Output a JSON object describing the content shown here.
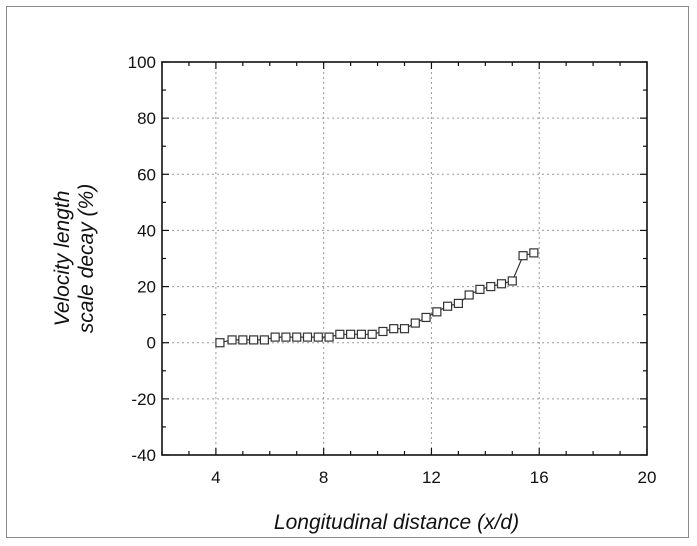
{
  "chart_data": {
    "type": "scatter",
    "xlabel": "Longitudinal distance (x/d)",
    "ylabel_lines": [
      "Velocity length",
      "scale decay (%)"
    ],
    "xlim": [
      2,
      20
    ],
    "ylim": [
      -40,
      100
    ],
    "xticks": [
      4,
      8,
      12,
      16,
      20
    ],
    "yticks": [
      100,
      80,
      60,
      40,
      20,
      0,
      -20,
      -40
    ],
    "grid": true,
    "marker": "open-square",
    "line": "connected",
    "colors": {
      "axis": "#111111",
      "grid": "#9a9a9a",
      "marker": "#333333"
    },
    "series": [
      {
        "x": [
          4.15,
          4.6,
          5.0,
          5.4,
          5.8,
          6.2,
          6.6,
          7.0,
          7.4,
          7.8,
          8.2,
          8.6,
          9.0,
          9.4,
          9.8,
          10.2,
          10.6,
          11.0,
          11.4,
          11.8,
          12.2,
          12.6,
          13.0,
          13.4,
          13.8,
          14.2,
          14.6,
          15.0,
          15.4,
          15.8
        ],
        "y": [
          0,
          1,
          1,
          1,
          1,
          2,
          2,
          2,
          2,
          2,
          2,
          3,
          3,
          3,
          3,
          4,
          5,
          5,
          7,
          9,
          11,
          13,
          14,
          17,
          19,
          20,
          21,
          22,
          31,
          32
        ]
      }
    ]
  }
}
